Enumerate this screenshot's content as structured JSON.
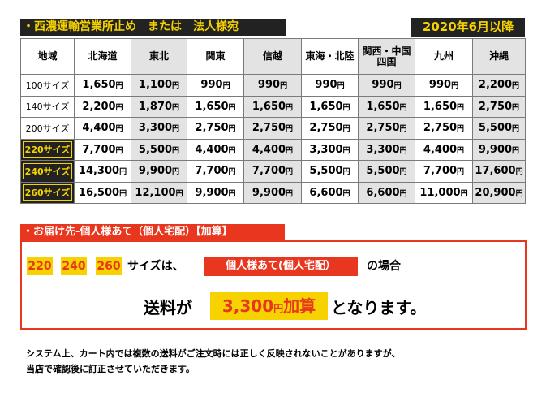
{
  "header": {
    "title": "・西濃運輸営業所止め　または　法人様宛",
    "date_badge": "2020年6月以降"
  },
  "rate_table": {
    "columns": [
      "地域",
      "北海道",
      "東北",
      "関東",
      "信越",
      "東海・北陸",
      "関西・中国\n四国",
      "九州",
      "沖縄"
    ],
    "yen_suffix": "円",
    "rows": [
      {
        "size": "100サイズ",
        "highlight": false,
        "prices": [
          "1,650",
          "1,100",
          "990",
          "990",
          "990",
          "990",
          "990",
          "2,200"
        ]
      },
      {
        "size": "140サイズ",
        "highlight": false,
        "prices": [
          "2,200",
          "1,870",
          "1,650",
          "1,650",
          "1,650",
          "1,650",
          "1,650",
          "2,750"
        ]
      },
      {
        "size": "200サイズ",
        "highlight": false,
        "prices": [
          "4,400",
          "3,300",
          "2,750",
          "2,750",
          "2,750",
          "2,750",
          "2,750",
          "5,500"
        ]
      },
      {
        "size": "220サイズ",
        "highlight": true,
        "prices": [
          "7,700",
          "5,500",
          "4,400",
          "4,400",
          "3,300",
          "3,300",
          "4,400",
          "9,900"
        ]
      },
      {
        "size": "240サイズ",
        "highlight": true,
        "prices": [
          "14,300",
          "9,900",
          "7,700",
          "7,700",
          "5,500",
          "5,500",
          "7,700",
          "17,600"
        ]
      },
      {
        "size": "260サイズ",
        "highlight": true,
        "prices": [
          "16,500",
          "12,100",
          "9,900",
          "9,900",
          "6,600",
          "6,600",
          "11,000",
          "20,900"
        ]
      }
    ]
  },
  "surcharge": {
    "title": "・お届け先-個人様あて（個人宅配）【加算】",
    "sizes": [
      "220",
      "240",
      "260"
    ],
    "condition_prefix": "サイズは、",
    "condition_tag": "個人様あて(個人宅配）",
    "condition_suffix": "の場合",
    "fee_prefix": "送料が",
    "fee_amount": "3,300",
    "fee_yen": "円",
    "fee_word": "加算",
    "fee_suffix": "となります。",
    "accent_color": "#e8361f",
    "highlight_color": "#f6d200"
  },
  "notes": [
    "システム上、カート内では複数の送料がご注文時には正しく反映されないことがありますが、",
    "当店で確認後に訂正させていただきます。"
  ]
}
